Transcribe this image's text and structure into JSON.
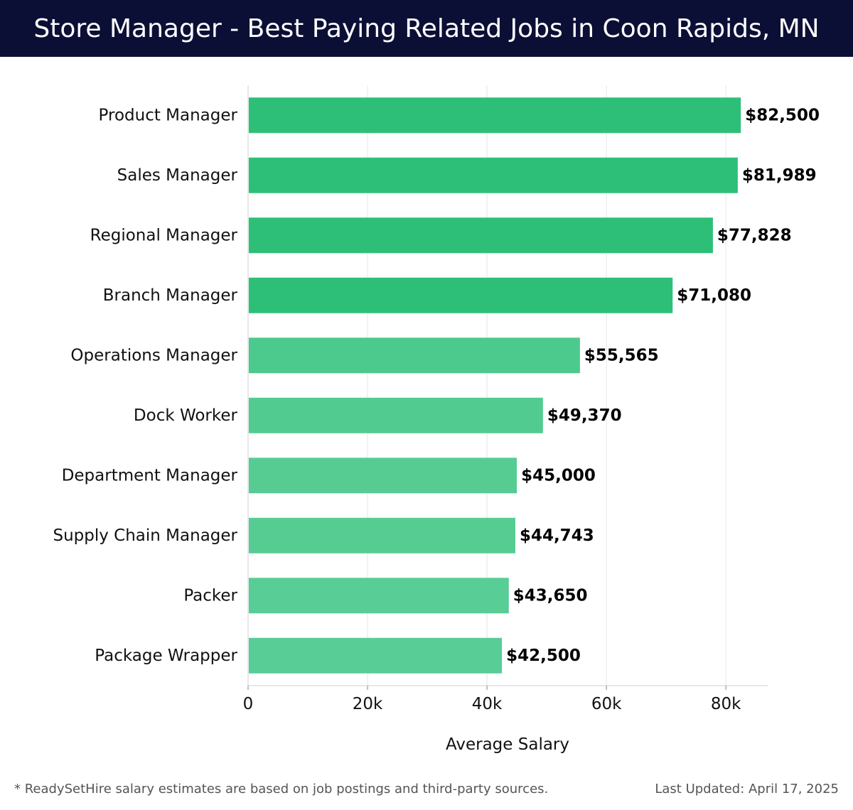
{
  "header": {
    "title": "Store Manager - Best Paying Related Jobs in Coon Rapids, MN"
  },
  "chart_data": {
    "type": "bar",
    "orientation": "horizontal",
    "title": "Store Manager - Best Paying Related Jobs in Coon Rapids, MN",
    "xlabel": "Average Salary",
    "ylabel": "",
    "xlim": [
      0,
      87000
    ],
    "x_ticks": [
      0,
      20000,
      40000,
      60000,
      80000
    ],
    "x_tick_labels": [
      "0",
      "20k",
      "40k",
      "60k",
      "80k"
    ],
    "grid": "vertical",
    "categories": [
      "Product Manager",
      "Sales Manager",
      "Regional Manager",
      "Branch Manager",
      "Operations Manager",
      "Dock Worker",
      "Department Manager",
      "Supply Chain Manager",
      "Packer",
      "Package Wrapper"
    ],
    "values": [
      82500,
      81989,
      77828,
      71080,
      55565,
      49370,
      45000,
      44743,
      43650,
      42500
    ],
    "value_labels": [
      "$82,500",
      "$81,989",
      "$77,828",
      "$71,080",
      "$55,565",
      "$49,370",
      "$45,000",
      "$44,743",
      "$43,650",
      "$42,500"
    ],
    "bar_colors": [
      "#2dbf78",
      "#2dbf78",
      "#2dbf78",
      "#2dbf78",
      "#4cc98c",
      "#52cb90",
      "#56cc93",
      "#56cc93",
      "#58cd95",
      "#58cd95"
    ],
    "grid_color": "#e6e6e6"
  },
  "footer": {
    "note": "* ReadySetHire salary estimates are based on job postings and third-party sources.",
    "updated": "Last Updated: April 17, 2025"
  }
}
